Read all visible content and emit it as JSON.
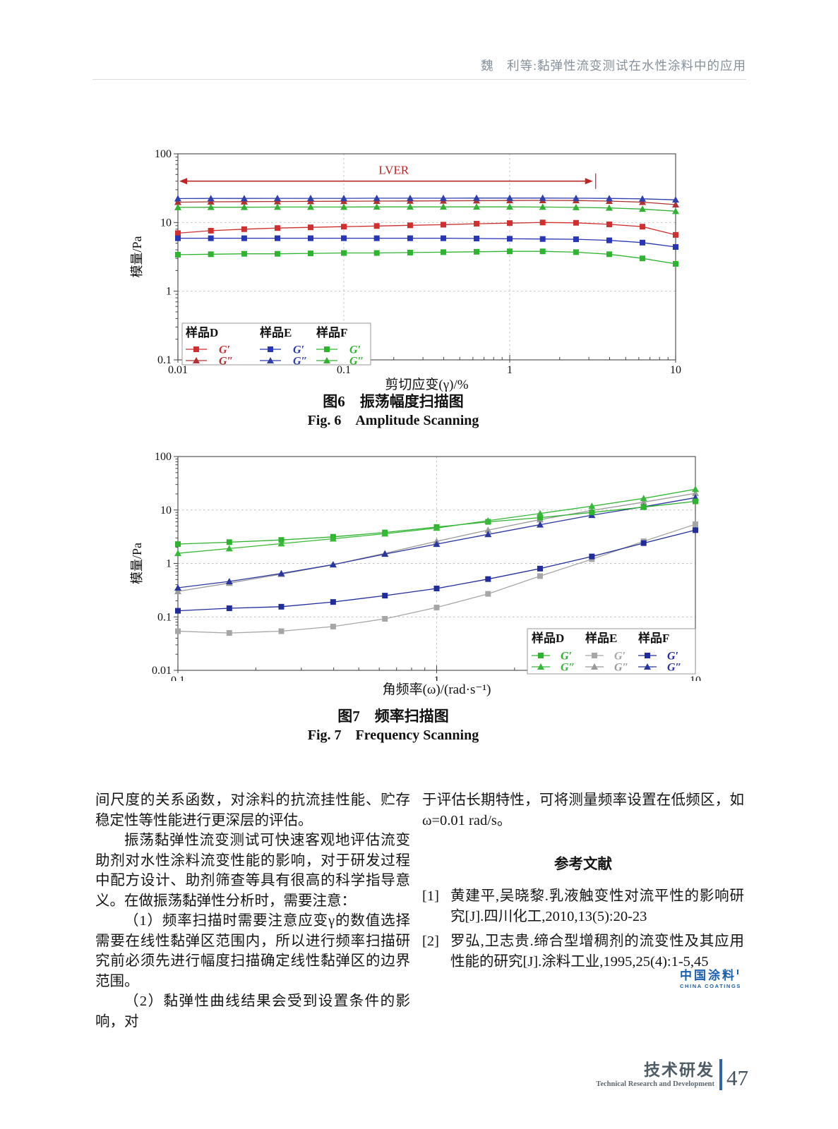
{
  "header": {
    "running_title": "魏　利等:黏弹性流变测试在水性涂料中的应用"
  },
  "figure6": {
    "caption_zh": "图6　振荡幅度扫描图",
    "caption_en": "Fig. 6　Amplitude Scanning",
    "xlabel": "剪切应变(γ)/%",
    "ylabel": "模量/Pa"
  },
  "figure7": {
    "caption_zh": "图7　频率扫描图",
    "caption_en": "Fig. 7　Frequency Scanning",
    "xlabel": "角频率(ω)/(rad·s⁻¹)",
    "ylabel": "模量/Pa"
  },
  "chart_data": [
    {
      "type": "line",
      "title": "图6 振荡幅度扫描图 / Fig.6 Amplitude Scanning",
      "xlabel": "剪切应变(γ)/%",
      "ylabel": "模量/Pa",
      "xscale": "log",
      "yscale": "log",
      "xlim": [
        0.01,
        10
      ],
      "ylim": [
        0.1,
        100
      ],
      "grid": "dashed-decades",
      "legend_position": "bottom-left",
      "xticks": [
        {
          "v": 0.01,
          "label": "0.01"
        },
        {
          "v": 0.1,
          "label": "0.1"
        },
        {
          "v": 1,
          "label": "1"
        },
        {
          "v": 10,
          "label": "10"
        }
      ],
      "yticks": [
        {
          "v": 100,
          "label": "100"
        },
        {
          "v": 10,
          "label": "10"
        },
        {
          "v": 1,
          "label": "1"
        },
        {
          "v": 0.1,
          "label": "0.1"
        }
      ],
      "annotation": {
        "label": "LVER",
        "y_value": 40,
        "x_start": 0.01,
        "x_end": 3.2,
        "label_x": 0.2,
        "color": "#bb2525"
      },
      "x": [
        0.01,
        0.0158,
        0.0251,
        0.0398,
        0.0631,
        0.1,
        0.158,
        0.251,
        0.398,
        0.631,
        1,
        1.58,
        2.51,
        3.98,
        6.31,
        10
      ],
      "series": [
        {
          "name": "D-G1",
          "group": "样品D",
          "label": "G′",
          "marker": "square",
          "color": "#cf2f2f",
          "values": [
            7.0,
            7.6,
            8.0,
            8.3,
            8.5,
            8.7,
            8.9,
            9.1,
            9.3,
            9.6,
            9.8,
            10.0,
            9.9,
            9.4,
            8.7,
            6.6
          ]
        },
        {
          "name": "D-G2",
          "group": "样品D",
          "label": "G″",
          "marker": "triangle",
          "color": "#b23030",
          "values": [
            19.8,
            20.0,
            20.1,
            20.2,
            20.3,
            20.4,
            20.5,
            20.6,
            20.7,
            20.8,
            20.9,
            21.0,
            20.9,
            20.5,
            19.8,
            18.2
          ]
        },
        {
          "name": "E-G1",
          "group": "样品E",
          "label": "G′",
          "marker": "square",
          "color": "#2636b4",
          "values": [
            5.9,
            5.9,
            5.9,
            5.9,
            5.9,
            5.9,
            5.9,
            5.9,
            5.9,
            5.85,
            5.8,
            5.75,
            5.7,
            5.5,
            5.1,
            4.4
          ]
        },
        {
          "name": "E-G2",
          "group": "样品E",
          "label": "G″",
          "marker": "triangle",
          "color": "#2f3fae",
          "values": [
            22.3,
            22.4,
            22.4,
            22.5,
            22.5,
            22.5,
            22.6,
            22.6,
            22.6,
            22.7,
            22.7,
            22.7,
            22.6,
            22.4,
            22.1,
            21.4
          ]
        },
        {
          "name": "F-G1",
          "group": "样品F",
          "label": "G′",
          "marker": "square",
          "color": "#2eb430",
          "values": [
            3.4,
            3.45,
            3.5,
            3.5,
            3.55,
            3.6,
            3.6,
            3.65,
            3.7,
            3.75,
            3.8,
            3.8,
            3.7,
            3.45,
            3.0,
            2.5
          ]
        },
        {
          "name": "F-G2",
          "group": "样品F",
          "label": "G″",
          "marker": "triangle",
          "color": "#33b133",
          "values": [
            16.6,
            16.7,
            16.7,
            16.8,
            16.8,
            16.8,
            16.9,
            16.9,
            16.9,
            16.9,
            16.9,
            16.8,
            16.6,
            16.3,
            15.7,
            14.6
          ]
        }
      ],
      "legend_groups": [
        "样品D",
        "样品E",
        "样品F"
      ]
    },
    {
      "type": "line",
      "title": "图7 频率扫描图 / Fig.7 Frequency Scanning",
      "xlabel": "角频率(ω)/(rad·s⁻¹)",
      "ylabel": "模量/Pa",
      "xscale": "log",
      "yscale": "log",
      "xlim": [
        0.1,
        10
      ],
      "ylim": [
        0.01,
        100
      ],
      "grid": "dashed-decades",
      "legend_position": "bottom-right",
      "xticks": [
        {
          "v": 0.1,
          "label": "0.1"
        },
        {
          "v": 1,
          "label": "1"
        },
        {
          "v": 10,
          "label": "10"
        }
      ],
      "yticks": [
        {
          "v": 100,
          "label": "100"
        },
        {
          "v": 10,
          "label": "10"
        },
        {
          "v": 1,
          "label": "1"
        },
        {
          "v": 0.1,
          "label": "0.1"
        },
        {
          "v": 0.01,
          "label": "0.01"
        }
      ],
      "x": [
        0.1,
        0.158,
        0.251,
        0.398,
        0.631,
        1,
        1.58,
        2.51,
        3.98,
        6.31,
        10
      ],
      "series": [
        {
          "name": "E-G1",
          "group": "样品E",
          "label": "G′",
          "marker": "square",
          "color": "#a6a6a6",
          "values": [
            0.054,
            0.05,
            0.054,
            0.066,
            0.092,
            0.15,
            0.27,
            0.58,
            1.2,
            2.6,
            5.4
          ]
        },
        {
          "name": "E-G2",
          "group": "样品E",
          "label": "G″",
          "marker": "triangle",
          "color": "#9a9a9a",
          "values": [
            0.3,
            0.43,
            0.63,
            0.95,
            1.55,
            2.6,
            4.2,
            6.6,
            9.8,
            14.0,
            20.5
          ]
        },
        {
          "name": "F-G1",
          "group": "样品F",
          "label": "G′",
          "marker": "square",
          "color": "#202d9b",
          "values": [
            0.13,
            0.145,
            0.155,
            0.19,
            0.25,
            0.34,
            0.51,
            0.8,
            1.35,
            2.4,
            4.2
          ]
        },
        {
          "name": "F-G2",
          "group": "样品F",
          "label": "G″",
          "marker": "triangle",
          "color": "#2a379f",
          "values": [
            0.35,
            0.46,
            0.65,
            0.95,
            1.5,
            2.3,
            3.5,
            5.3,
            8.0,
            11.5,
            17.0
          ]
        },
        {
          "name": "D-G1",
          "group": "样品D",
          "label": "G′",
          "marker": "square",
          "color": "#2db32d",
          "values": [
            2.3,
            2.5,
            2.75,
            3.15,
            3.8,
            4.8,
            6.0,
            7.2,
            9.0,
            11.3,
            14.5
          ]
        },
        {
          "name": "D-G2",
          "group": "样品D",
          "label": "G″",
          "marker": "triangle",
          "color": "#38b838",
          "values": [
            1.55,
            1.9,
            2.35,
            2.9,
            3.6,
            4.6,
            6.3,
            8.6,
            11.8,
            16.5,
            24.5
          ]
        }
      ],
      "legend_groups": [
        "样品D",
        "样品E",
        "样品F"
      ]
    }
  ],
  "body": {
    "left_paragraphs": [
      {
        "indent": false,
        "text": "间尺度的关系函数，对涂料的抗流挂性能、贮存稳定性等性能进行更深层的评估。"
      },
      {
        "indent": true,
        "text": "振荡黏弹性流变测试可快速客观地评估流变助剂对水性涂料流变性能的影响，对于研发过程中配方设计、助剂筛查等具有很高的科学指导意义。在做振荡黏弹性分析时，需要注意："
      },
      {
        "indent": true,
        "text": "（1）频率扫描时需要注意应变γ的数值选择需要在线性黏弹区范围内，所以进行频率扫描研究前必须先进行幅度扫描确定线性黏弹区的边界范围。"
      },
      {
        "indent": true,
        "text": "（2）黏弹性曲线结果会受到设置条件的影响，对"
      }
    ],
    "right_paragraphs": [
      {
        "indent": false,
        "text": "于评估长期特性，可将测量频率设置在低频区，如ω=0.01 rad/s。"
      }
    ],
    "references_title": "参考文献",
    "references": [
      {
        "num": "[1]",
        "text": "黄建平,吴晓黎.乳液触变性对流平性的影响研究[J].四川化工,2010,13(5):20-23"
      },
      {
        "num": "[2]",
        "text": "罗弘,卫志贵.缔合型增稠剂的流变性及其应用性能的研究[J].涂料工业,1995,25(4):1-5,45"
      }
    ]
  },
  "logo": {
    "zh": "中国涂料",
    "en": "CHINA COATINGS"
  },
  "footer": {
    "section_zh": "技术研发",
    "section_en": "Technical Research and Development",
    "page": "47"
  }
}
